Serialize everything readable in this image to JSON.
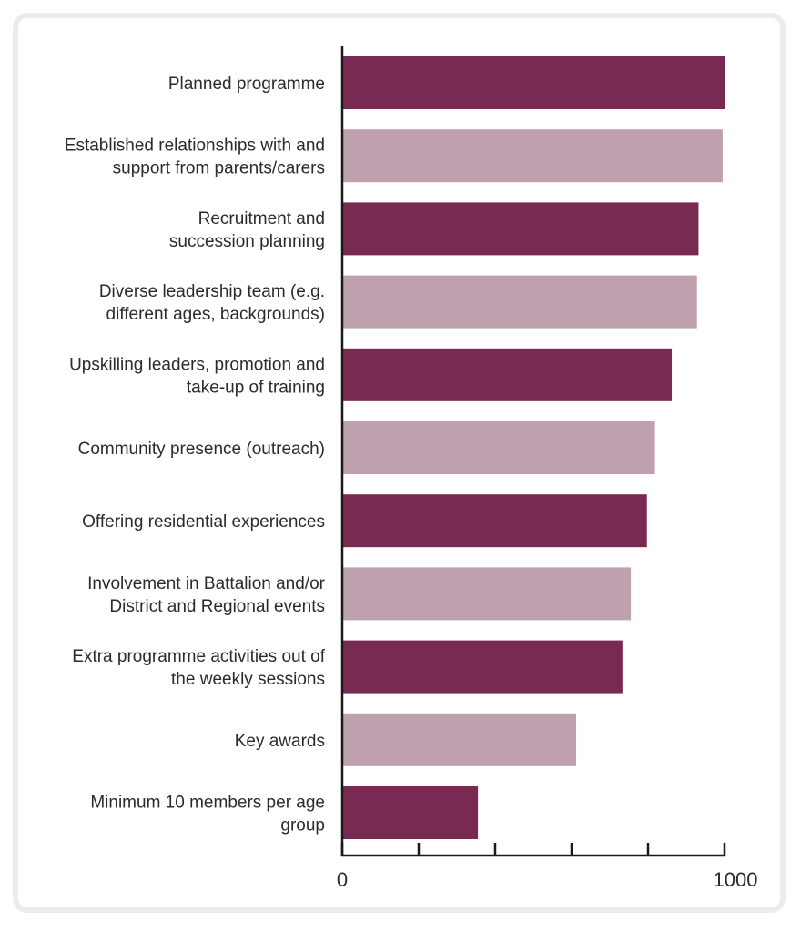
{
  "chart_data": {
    "type": "bar",
    "orientation": "horizontal",
    "title": "",
    "xlabel": "",
    "ylabel": "",
    "xlim": [
      0,
      1000
    ],
    "grid": false,
    "legend": null,
    "x_ticks": [
      0,
      200,
      400,
      600,
      800,
      1000
    ],
    "x_tick_labels": [
      "0",
      "",
      "",
      "",
      "",
      "1000"
    ],
    "categories": [
      [
        "Planned programme"
      ],
      [
        "Established relationships with and",
        "support from parents/carers"
      ],
      [
        "Recruitment and",
        "succession planning"
      ],
      [
        "Diverse leadership team (e.g.",
        "different ages, backgrounds)"
      ],
      [
        "Upskilling leaders, promotion and",
        "take-up of training"
      ],
      [
        "Community presence (outreach)"
      ],
      [
        "Offering residential experiences"
      ],
      [
        "Involvement in Battalion and/or",
        "District and Regional events"
      ],
      [
        "Extra programme activities out of",
        "the weekly sessions"
      ],
      [
        "Key awards"
      ],
      [
        "Minimum 10 members per age",
        "group"
      ]
    ],
    "values": [
      1000,
      995,
      932,
      928,
      862,
      818,
      797,
      755,
      733,
      612,
      355
    ],
    "colors": {
      "dark": "#782a53",
      "light": "#bfa0ae",
      "axis": "#1a1a1a",
      "frame": "#ececec"
    }
  }
}
